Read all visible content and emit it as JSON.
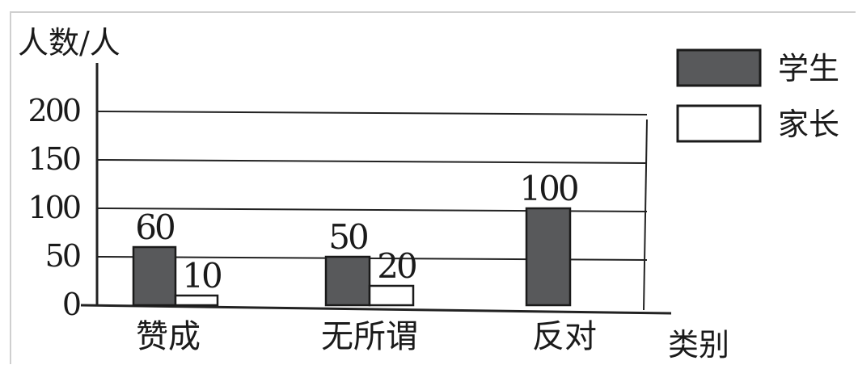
{
  "chart_data": {
    "type": "bar",
    "title": "",
    "ylabel": "人数/人",
    "xlabel": "类别",
    "ylim": [
      0,
      200
    ],
    "yticks": [
      "0",
      "50",
      "100",
      "150",
      "200"
    ],
    "categories": [
      "赞成",
      "无所谓",
      "反对"
    ],
    "series": [
      {
        "name": "学生",
        "values": [
          60,
          50,
          100
        ],
        "labels": [
          "60",
          "50",
          "100"
        ],
        "color": "#58595b"
      },
      {
        "name": "家长",
        "values": [
          10,
          20,
          0
        ],
        "labels": [
          "10",
          "20",
          ""
        ],
        "color": "#ffffff"
      }
    ],
    "grid": true,
    "legend_position": "top-right"
  }
}
